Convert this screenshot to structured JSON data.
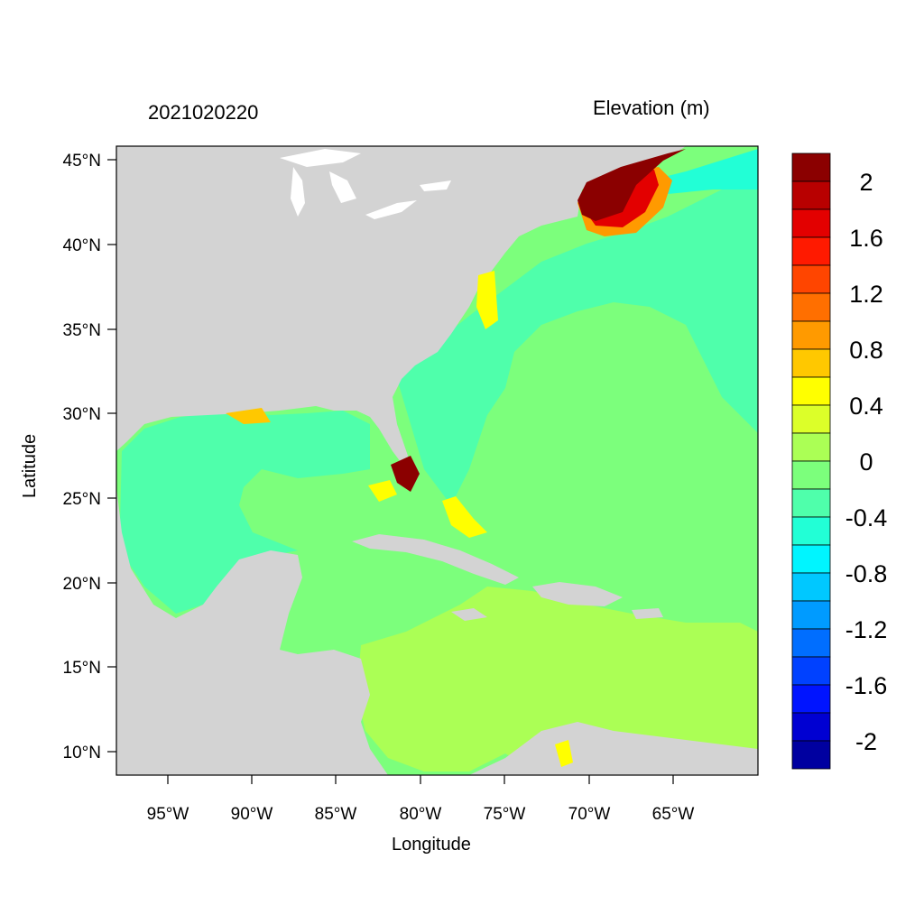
{
  "title_left": "2021020220",
  "title_right": "Elevation (m)",
  "xlabel": "Longitude",
  "ylabel": "Latitude",
  "x_ticks": [
    "95°W",
    "90°W",
    "85°W",
    "80°W",
    "75°W",
    "70°W",
    "65°W"
  ],
  "y_ticks": [
    "45°N",
    "40°N",
    "35°N",
    "30°N",
    "25°N",
    "20°N",
    "15°N",
    "10°N"
  ],
  "map": {
    "type": "heatmap",
    "variable": "water surface elevation",
    "region": "Gulf of Mexico, Caribbean Sea and western North Atlantic",
    "lon_range_deg": [
      -98,
      -60.2
    ],
    "lat_range_deg": [
      8.5,
      46
    ],
    "colors": {
      "land": "#d3d3d3",
      "lakes": "#ffffff",
      "gulf_of_mexico": "-0.4 to -0.2",
      "atlantic_open": "-0.2 to 0",
      "caribbean_south": "0 to 0.2",
      "gulf_of_maine": "above 2"
    }
  },
  "colorbar": {
    "labels": [
      "2",
      "1.6",
      "1.2",
      "0.8",
      "0.4",
      "0",
      "-0.4",
      "-0.8",
      "-1.2",
      "-1.6",
      "-2"
    ],
    "colors": [
      "#8b0000",
      "#b80000",
      "#e30000",
      "#ff1a00",
      "#ff4500",
      "#ff6f00",
      "#ff9a00",
      "#ffc800",
      "#ffff00",
      "#dcff29",
      "#abff55",
      "#7cff7c",
      "#4fffab",
      "#22ffd6",
      "#00f5ff",
      "#00c8ff",
      "#009bff",
      "#006eff",
      "#0041ff",
      "#0014ff",
      "#0000d2",
      "#0000a0"
    ]
  }
}
